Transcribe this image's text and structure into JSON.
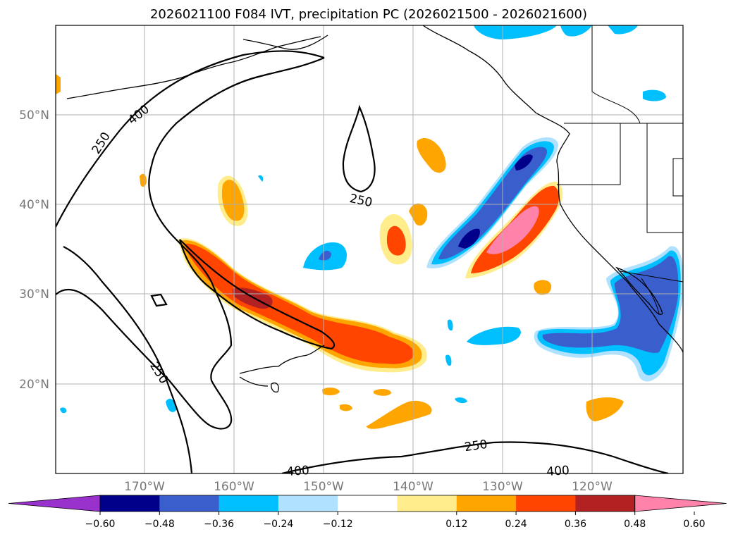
{
  "title": "2026021100 F084 IVT, precipitation PC (2026021500 - 2026021600)",
  "axes": {
    "lat_labels": [
      "20°N",
      "30°N",
      "40°N",
      "50°N"
    ],
    "lon_labels": [
      "170°W",
      "160°W",
      "150°W",
      "140°W",
      "130°W",
      "120°W"
    ]
  },
  "contour_labels": [
    "250",
    "400",
    "250",
    "250",
    "250",
    "400",
    "400"
  ],
  "colorbar": {
    "ticks": [
      "−0.60",
      "−0.48",
      "−0.36",
      "−0.24",
      "−0.12",
      "0.12",
      "0.24",
      "0.36",
      "0.48",
      "0.60"
    ],
    "colors": [
      "#9932cc",
      "#00008b",
      "#3a5fcd",
      "#00bfff",
      "#b0e2ff",
      "#ffffff",
      "#ffec8b",
      "#ffa500",
      "#ff4500",
      "#b22222",
      "#ff82ab"
    ]
  },
  "chart_data": {
    "type": "map",
    "title": "2026021100 F084 IVT, precipitation PC (2026021500 - 2026021600)",
    "variables": [
      "IVT contours (250, 400)",
      "precipitation PC (filled)"
    ],
    "lon_range": [
      -180,
      -110
    ],
    "lat_range": [
      10,
      60
    ],
    "ivt_contour_levels": [
      250,
      400
    ],
    "pc_levels": [
      -0.6,
      -0.48,
      -0.36,
      -0.24,
      -0.12,
      0.12,
      0.24,
      0.36,
      0.48,
      0.6
    ]
  }
}
